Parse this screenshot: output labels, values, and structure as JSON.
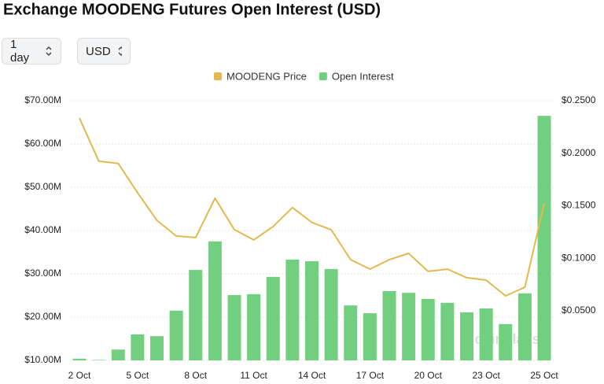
{
  "controls": [
    "1 day",
    "USD"
  ],
  "chart_data": {
    "type": "bar",
    "title": "Exchange MOODENG Futures Open Interest (USD)",
    "categories": [
      "2 Oct",
      null,
      null,
      "5 Oct",
      null,
      null,
      "8 Oct",
      null,
      null,
      "11 Oct",
      null,
      null,
      "14 Oct",
      null,
      null,
      "17 Oct",
      null,
      null,
      "20 Oct",
      null,
      null,
      "23 Oct",
      null,
      null,
      "25 Oct"
    ],
    "series": [
      {
        "name": "MOODENG Price",
        "type": "line",
        "axis": "y2",
        "color": "#e3b94f",
        "values": [
          0.2335,
          0.1925,
          0.1903,
          0.1624,
          0.1361,
          0.1212,
          0.1197,
          0.1572,
          0.1273,
          0.1175,
          0.1303,
          0.1483,
          0.1341,
          0.1272,
          0.0987,
          0.0897,
          0.0987,
          0.1047,
          0.0875,
          0.0897,
          0.0815,
          0.0792,
          0.0642,
          0.0725,
          0.1526
        ]
      },
      {
        "name": "Open Interest",
        "type": "bar",
        "color": "#72cf80",
        "values": [
          10.4,
          10.1,
          12.5,
          16.0,
          15.6,
          21.5,
          30.9,
          37.5,
          25.1,
          25.3,
          29.3,
          33.3,
          32.9,
          31.1,
          22.7,
          20.9,
          26.0,
          25.6,
          24.2,
          23.3,
          21.1,
          22.0,
          18.4,
          25.5,
          66.5
        ]
      }
    ],
    "ylim": [
      10,
      70
    ],
    "yticks": [
      {
        "value": 10,
        "label": "$10.00M"
      },
      {
        "value": 20,
        "label": "$20.00M"
      },
      {
        "value": 30,
        "label": "$30.00M"
      },
      {
        "value": 40,
        "label": "$40.00M"
      },
      {
        "value": 50,
        "label": "$50.00M"
      },
      {
        "value": 60,
        "label": "$60.00M"
      },
      {
        "value": 70,
        "label": "$70.00M"
      }
    ],
    "y2lim": [
      0.0028,
      0.25
    ],
    "y2ticks": [
      {
        "value": 0.05,
        "label": "$0.0500"
      },
      {
        "value": 0.1,
        "label": "$0.1000"
      },
      {
        "value": 0.15,
        "label": "$0.1500"
      },
      {
        "value": 0.2,
        "label": "$0.2000"
      },
      {
        "value": 0.25,
        "label": "$0.2500"
      }
    ],
    "grid": true,
    "legend": "top",
    "watermark": "coinglass"
  }
}
